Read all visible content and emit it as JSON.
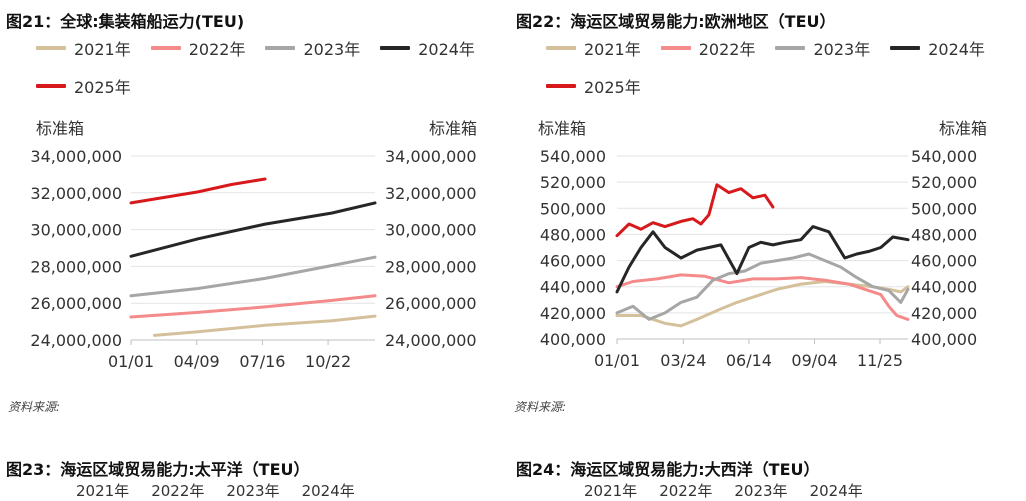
{
  "charts": [
    {
      "title": "图21：全球:集装箱船运力(TEU)",
      "ylabel_left": "标准箱",
      "ylabel_right": "标准箱",
      "source": "资料来源:"
    },
    {
      "title": "图22：海运区域贸易能力:欧洲地区（TEU）",
      "ylabel_left": "标准箱",
      "ylabel_right": "标准箱",
      "source": "资料来源:"
    }
  ],
  "chart_data": [
    {
      "type": "line",
      "title": "图21：全球:集装箱船运力(TEU)",
      "ylabel": "标准箱",
      "x_ticks": [
        "01/01",
        "04/09",
        "07/16",
        "10/22"
      ],
      "x_tick_days": [
        0,
        98,
        196,
        294
      ],
      "xlim_days": [
        0,
        364
      ],
      "ylim": [
        24000000,
        34000000
      ],
      "y_ticks": [
        24000000,
        26000000,
        28000000,
        30000000,
        32000000,
        34000000
      ],
      "y_tick_labels": [
        "24,000,000",
        "26,000,000",
        "28,000,000",
        "30,000,000",
        "32,000,000",
        "34,000,000"
      ],
      "grid": true,
      "legend_position": "top",
      "series": [
        {
          "name": "2021年",
          "color": "#d4c09a",
          "x": [
            35,
            100,
            200,
            300,
            364
          ],
          "y": [
            24250000,
            24450000,
            24800000,
            25050000,
            25300000
          ]
        },
        {
          "name": "2022年",
          "color": "#f48a8a",
          "x": [
            0,
            100,
            200,
            300,
            364
          ],
          "y": [
            25250000,
            25500000,
            25800000,
            26150000,
            26400000
          ]
        },
        {
          "name": "2023年",
          "color": "#a6a6a6",
          "x": [
            0,
            100,
            200,
            300,
            364
          ],
          "y": [
            26400000,
            26800000,
            27350000,
            28050000,
            28500000
          ]
        },
        {
          "name": "2024年",
          "color": "#262626",
          "x": [
            0,
            100,
            200,
            300,
            364
          ],
          "y": [
            28550000,
            29500000,
            30300000,
            30900000,
            31450000
          ]
        },
        {
          "name": "2025年",
          "color": "#d7191c",
          "x": [
            0,
            50,
            100,
            150,
            200
          ],
          "y": [
            31450000,
            31750000,
            32050000,
            32450000,
            32750000
          ]
        }
      ]
    },
    {
      "type": "line",
      "title": "图22：海运区域贸易能力:欧洲地区（TEU）",
      "ylabel": "标准箱",
      "x_ticks": [
        "01/01",
        "03/24",
        "06/14",
        "09/04",
        "11/25"
      ],
      "x_tick_days": [
        0,
        83,
        165,
        247,
        329
      ],
      "xlim_days": [
        0,
        364
      ],
      "ylim": [
        400000,
        540000
      ],
      "y_ticks": [
        400000,
        420000,
        440000,
        460000,
        480000,
        500000,
        520000,
        540000
      ],
      "y_tick_labels": [
        "400,000",
        "420,000",
        "440,000",
        "460,000",
        "480,000",
        "500,000",
        "520,000",
        "540,000"
      ],
      "grid": true,
      "legend_position": "top",
      "series": [
        {
          "name": "2021年",
          "color": "#d4c09a",
          "x": [
            0,
            30,
            60,
            80,
            100,
            130,
            150,
            170,
            200,
            230,
            260,
            290,
            320,
            340,
            355,
            364
          ],
          "y": [
            418000,
            418000,
            412000,
            410000,
            415000,
            423000,
            428000,
            432000,
            438000,
            442000,
            444000,
            442000,
            440000,
            438000,
            436000,
            440000
          ]
        },
        {
          "name": "2022年",
          "color": "#f48a8a",
          "x": [
            0,
            20,
            50,
            80,
            110,
            140,
            170,
            200,
            230,
            260,
            290,
            310,
            330,
            340,
            350,
            364
          ],
          "y": [
            440000,
            444000,
            446000,
            449000,
            448000,
            443000,
            446000,
            446000,
            447000,
            445000,
            442000,
            438000,
            434000,
            425000,
            418000,
            415000
          ]
        },
        {
          "name": "2023年",
          "color": "#a6a6a6",
          "x": [
            0,
            20,
            40,
            60,
            80,
            100,
            120,
            140,
            160,
            180,
            200,
            220,
            240,
            260,
            280,
            300,
            320,
            340,
            355,
            364
          ],
          "y": [
            420000,
            425000,
            415000,
            420000,
            428000,
            432000,
            445000,
            450000,
            452000,
            458000,
            460000,
            462000,
            465000,
            460000,
            455000,
            447000,
            440000,
            437000,
            428000,
            438000
          ]
        },
        {
          "name": "2024年",
          "color": "#262626",
          "x": [
            0,
            15,
            30,
            45,
            60,
            80,
            100,
            115,
            130,
            150,
            165,
            180,
            195,
            210,
            230,
            245,
            265,
            285,
            300,
            315,
            330,
            345,
            364
          ],
          "y": [
            436000,
            455000,
            470000,
            482000,
            470000,
            462000,
            468000,
            470000,
            472000,
            450000,
            470000,
            474000,
            472000,
            474000,
            476000,
            486000,
            482000,
            462000,
            465000,
            467000,
            470000,
            478000,
            476000
          ]
        },
        {
          "name": "2025年",
          "color": "#d7191c",
          "x": [
            0,
            15,
            30,
            45,
            60,
            80,
            95,
            105,
            115,
            125,
            140,
            155,
            170,
            185,
            195
          ],
          "y": [
            479000,
            488000,
            484000,
            489000,
            486000,
            490000,
            492000,
            488000,
            495000,
            518000,
            512000,
            515000,
            508000,
            510000,
            501000
          ]
        }
      ]
    }
  ],
  "bottom": [
    {
      "title": "图23：海运区域贸易能力:太平洋（TEU）",
      "legend": [
        "2021年",
        "2022年",
        "2023年",
        "2024年"
      ]
    },
    {
      "title": "图24：海运区域贸易能力:大西洋（TEU）",
      "legend": [
        "2021年",
        "2022年",
        "2023年",
        "2024年"
      ]
    }
  ]
}
